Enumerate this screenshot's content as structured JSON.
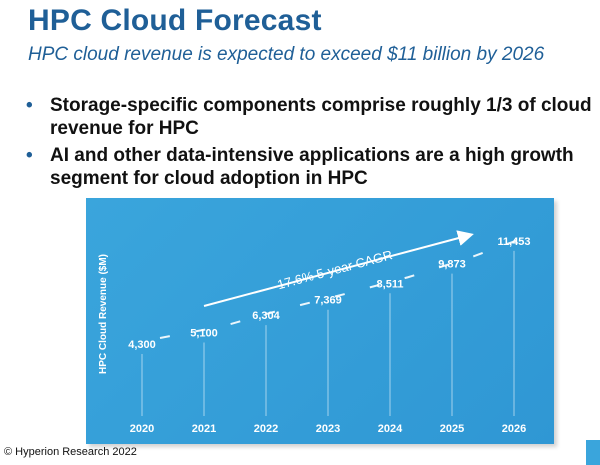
{
  "slide": {
    "title": "HPC Cloud Forecast",
    "subtitle": "HPC cloud revenue is expected to exceed $11 billion by 2026",
    "bullets": [
      "Storage-specific components comprise roughly 1/3 of cloud revenue for HPC",
      "AI and other data-intensive applications are a high growth segment for cloud adoption in HPC"
    ],
    "footer": "© Hyperion Research 2022",
    "colors": {
      "title": "#1f5f97",
      "chart_bg": "#3aa5dc",
      "chart_text": "#ffffff"
    }
  },
  "chart_data": {
    "type": "bar",
    "categories": [
      "2020",
      "2021",
      "2022",
      "2023",
      "2024",
      "2025",
      "2026"
    ],
    "values": [
      4300,
      5100,
      6304,
      7369,
      8511,
      9873,
      11453
    ],
    "value_labels": [
      "4,300",
      "5,100",
      "6,304",
      "7,369",
      "8,511",
      "9,873",
      "11,453"
    ],
    "title": "",
    "xlabel": "",
    "ylabel": "HPC Cloud Revenue ($M)",
    "ylim": [
      0,
      13000
    ],
    "grid": false,
    "legend": false,
    "annotation": "17.6% 5-year CAGR"
  }
}
